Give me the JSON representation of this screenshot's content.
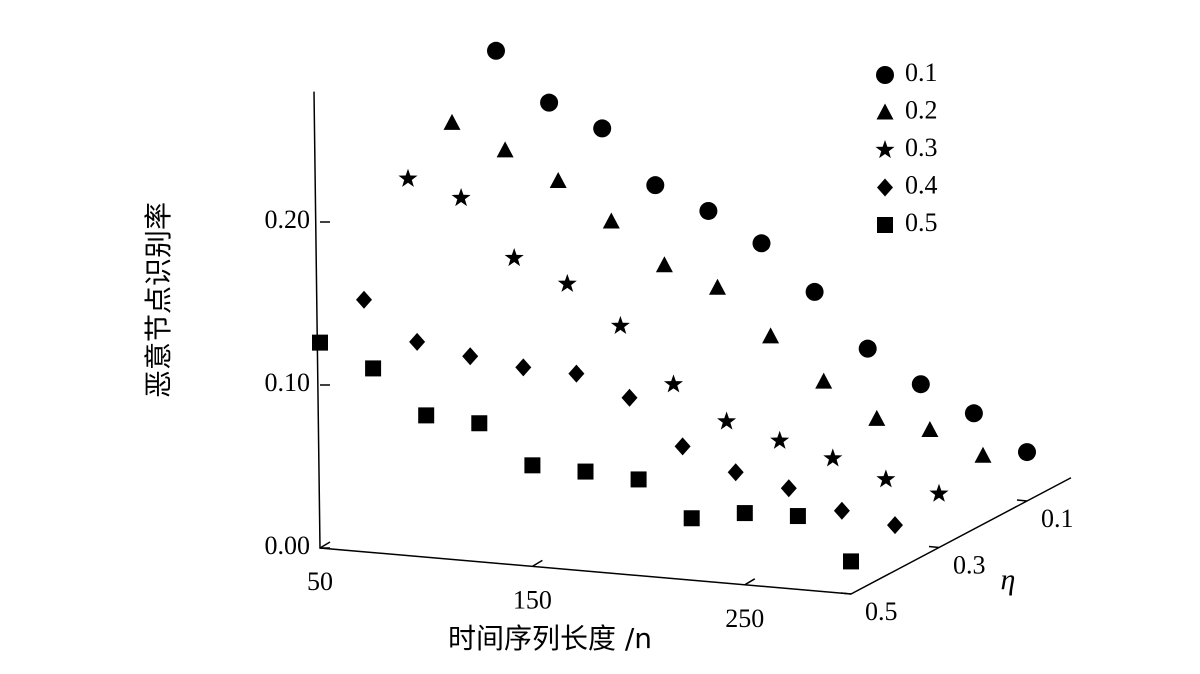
{
  "chart_data": {
    "type": "scatter3d",
    "xlabel": "时间序列长度 /n",
    "ylabel": "η",
    "zlabel": "恶意节点识别率",
    "x": [
      50,
      75,
      100,
      125,
      150,
      175,
      200,
      225,
      250,
      275,
      300
    ],
    "xlim": [
      50,
      300
    ],
    "xticks": [
      50,
      150,
      250
    ],
    "ylim": [
      0.5,
      0
    ],
    "yticks": [
      0.1,
      0.3,
      0.5
    ],
    "zlim": [
      0,
      0.28
    ],
    "zticks": [
      {
        "value": 0,
        "label": "0.00"
      },
      {
        "value": 0.1,
        "label": "0.10"
      },
      {
        "value": 0.2,
        "label": "0.20"
      }
    ],
    "legend": "upper right",
    "series": [
      {
        "name": "0.1",
        "marker": "circle",
        "color": "#000000",
        "values": [
          0.248,
          0.219,
          0.206,
          0.174,
          0.161,
          0.144,
          0.117,
          0.085,
          0.066,
          0.051,
          0.03
        ]
      },
      {
        "name": "0.2",
        "marker": "triangle",
        "color": "#000000",
        "values": [
          0.218,
          0.204,
          0.188,
          0.166,
          0.142,
          0.131,
          0.104,
          0.079,
          0.059,
          0.055,
          0.042
        ]
      },
      {
        "name": "0.3",
        "marker": "star",
        "color": "#000000",
        "values": [
          0.198,
          0.189,
          0.155,
          0.142,
          0.119,
          0.086,
          0.066,
          0.057,
          0.049,
          0.039,
          0.033
        ]
      },
      {
        "name": "0.4",
        "marker": "diamond",
        "color": "#000000",
        "values": [
          0.138,
          0.115,
          0.109,
          0.105,
          0.104,
          0.092,
          0.065,
          0.052,
          0.045,
          0.034,
          0.028
        ]
      },
      {
        "name": "0.5",
        "marker": "square",
        "color": "#000000",
        "values": [
          0.126,
          0.113,
          0.087,
          0.085,
          0.062,
          0.061,
          0.059,
          0.038,
          0.044,
          0.045,
          0.02
        ]
      }
    ]
  }
}
